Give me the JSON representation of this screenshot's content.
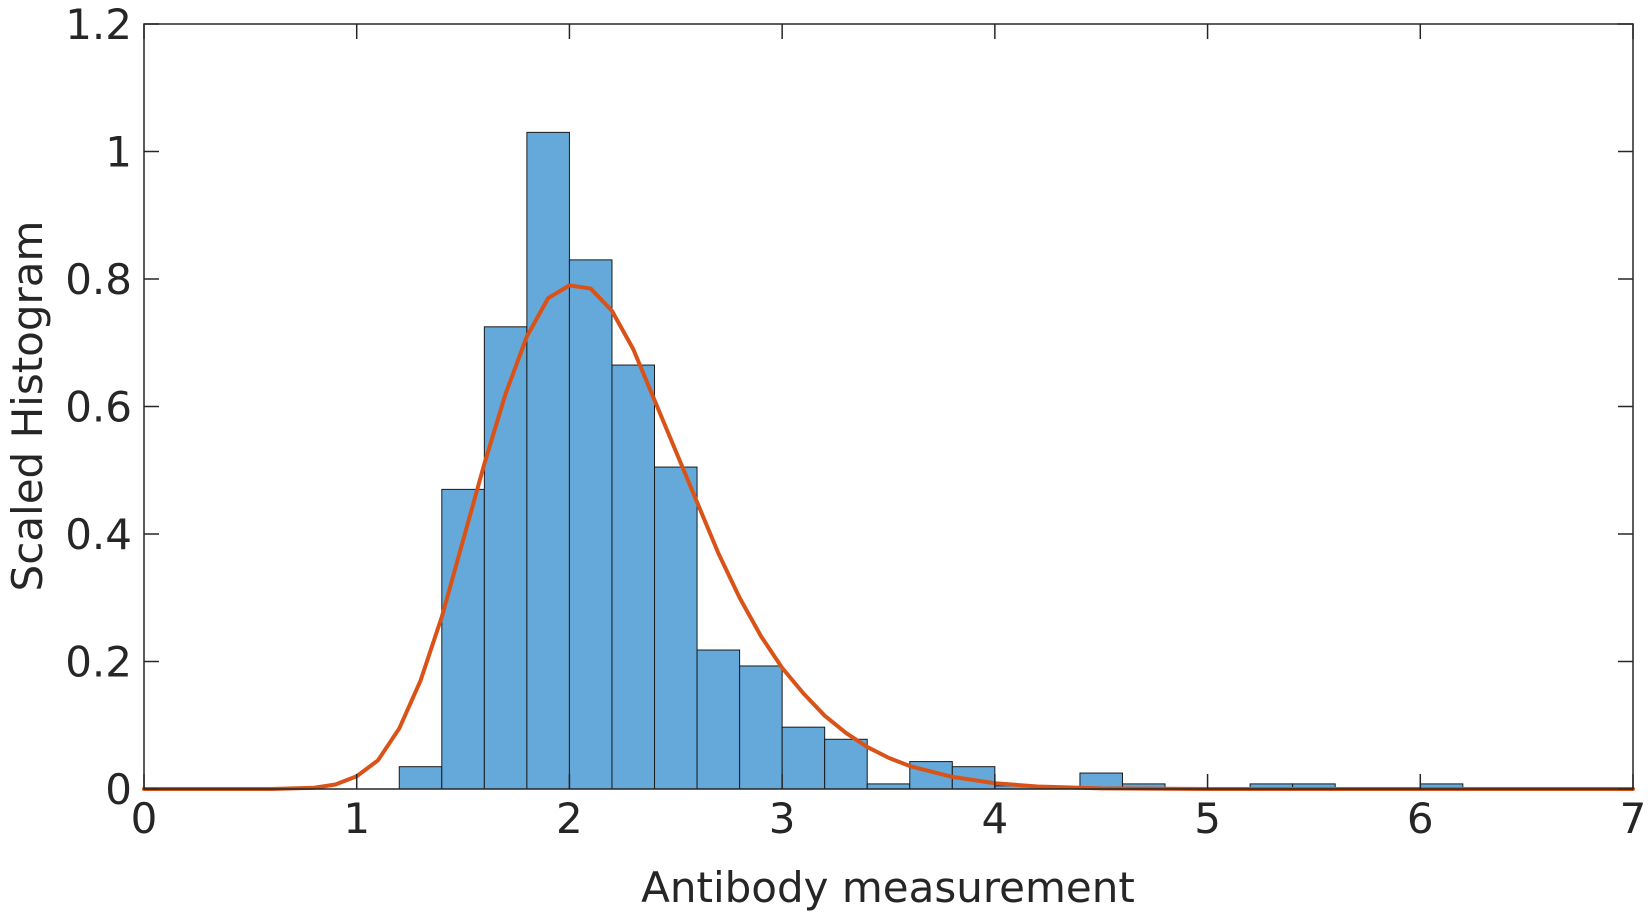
{
  "chart_data": {
    "type": "histogram",
    "xlabel": "Antibody measurement",
    "ylabel": "Scaled Histogram",
    "bins": [
      1.2,
      1.4,
      1.6,
      1.8,
      2.0,
      2.2,
      2.4,
      2.6,
      2.8,
      3.0,
      3.2,
      3.4,
      3.6,
      3.8,
      4.0,
      4.2,
      4.4,
      4.6,
      4.8,
      5.0,
      5.2,
      5.4,
      5.6,
      5.8,
      6.0,
      6.2
    ],
    "values": [
      0.035,
      0.47,
      0.725,
      1.03,
      0.83,
      0.665,
      0.505,
      0.218,
      0.193,
      0.097,
      0.078,
      0.008,
      0.043,
      0.035,
      0.005,
      0,
      0.025,
      0.008,
      0,
      0,
      0.008,
      0.008,
      0,
      0,
      0.008
    ],
    "color": "#64a9d9",
    "fit": {
      "type": "line",
      "color": "#d95319",
      "x": [
        0,
        0.6,
        0.8,
        0.9,
        1.0,
        1.1,
        1.2,
        1.3,
        1.4,
        1.5,
        1.6,
        1.7,
        1.8,
        1.9,
        2.0,
        2.1,
        2.2,
        2.3,
        2.4,
        2.5,
        2.6,
        2.7,
        2.8,
        2.9,
        3.0,
        3.1,
        3.2,
        3.3,
        3.4,
        3.5,
        3.6,
        3.8,
        4.0,
        4.2,
        4.5,
        5,
        6,
        7
      ],
      "values": [
        0,
        0,
        0.002,
        0.007,
        0.02,
        0.045,
        0.095,
        0.17,
        0.27,
        0.39,
        0.51,
        0.62,
        0.71,
        0.77,
        0.79,
        0.785,
        0.75,
        0.69,
        0.61,
        0.53,
        0.45,
        0.37,
        0.3,
        0.24,
        0.19,
        0.15,
        0.115,
        0.088,
        0.066,
        0.049,
        0.036,
        0.019,
        0.009,
        0.004,
        0.001,
        0,
        0,
        0
      ]
    },
    "xlim": [
      0,
      7
    ],
    "xticks": [
      0,
      1,
      2,
      3,
      4,
      5,
      6,
      7
    ],
    "ylim": [
      0,
      1.2
    ],
    "yticks": [
      0,
      0.2,
      0.4,
      0.6,
      0.8,
      1,
      1.2
    ]
  }
}
